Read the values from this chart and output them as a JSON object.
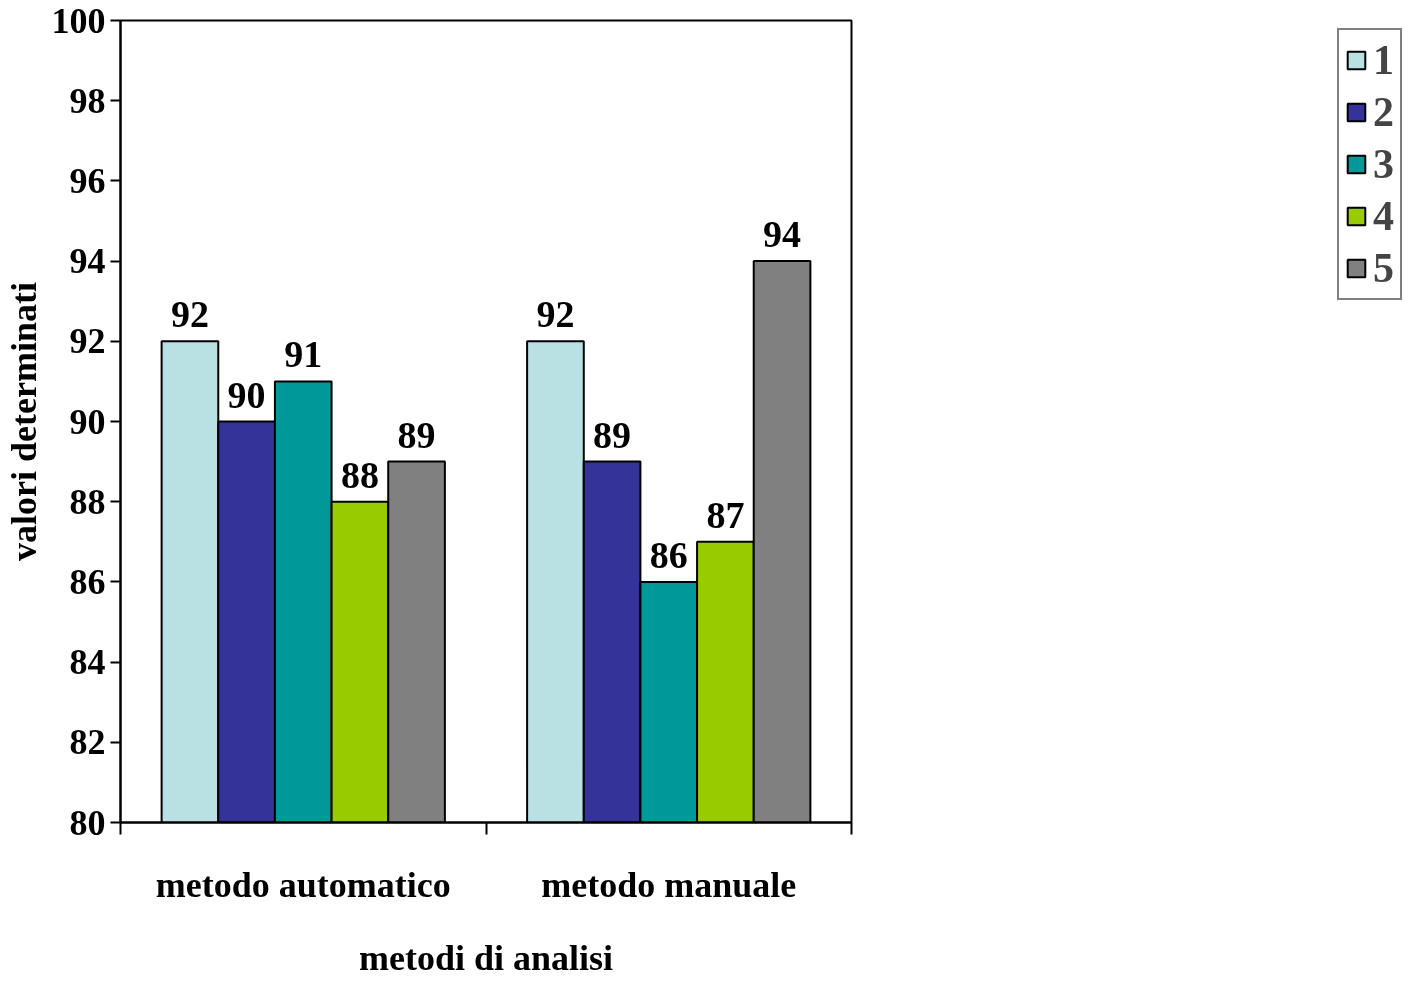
{
  "chart_data": {
    "type": "bar",
    "xlabel": "metodi di analisi",
    "ylabel": "valori determinati",
    "categories": [
      "metodo automatico",
      "metodo manuale"
    ],
    "series": [
      {
        "name": "1",
        "color": "#b9e0e3",
        "values": [
          92,
          92
        ]
      },
      {
        "name": "2",
        "color": "#333399",
        "values": [
          90,
          89
        ]
      },
      {
        "name": "3",
        "color": "#009999",
        "values": [
          91,
          86
        ]
      },
      {
        "name": "4",
        "color": "#99cc00",
        "values": [
          88,
          87
        ]
      },
      {
        "name": "5",
        "color": "#808080",
        "values": [
          89,
          94
        ]
      }
    ],
    "ylim": [
      80,
      100
    ],
    "yticks": [
      80,
      82,
      84,
      86,
      88,
      90,
      92,
      94,
      96,
      98,
      100
    ],
    "grid": false,
    "legend": "right",
    "data_labels": true
  }
}
